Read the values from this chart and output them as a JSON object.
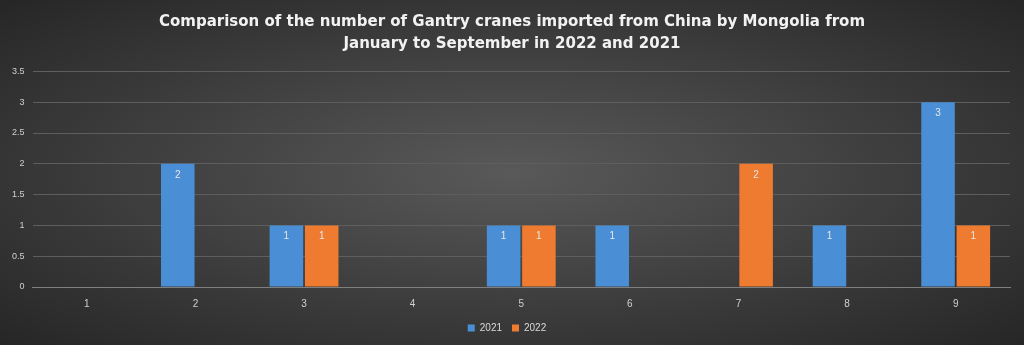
{
  "chart_data": {
    "type": "bar",
    "title": "Comparison of the number of Gantry cranes imported from China by Mongolia from January to September in 2022 and 2021",
    "categories": [
      "1",
      "2",
      "3",
      "4",
      "5",
      "6",
      "7",
      "8",
      "9"
    ],
    "series": [
      {
        "name": "2021",
        "color": "#4a8fd6",
        "values": [
          0,
          2,
          1,
          0,
          1,
          1,
          0,
          1,
          3
        ],
        "value_labels": [
          null,
          "2",
          "1",
          null,
          "1",
          "1",
          null,
          "1",
          "3"
        ]
      },
      {
        "name": "2022",
        "color": "#ee7b30",
        "values": [
          0,
          0,
          1,
          0,
          1,
          0,
          2,
          0,
          1
        ],
        "value_labels": [
          null,
          null,
          "1",
          null,
          "1",
          null,
          "2",
          null,
          "1"
        ]
      }
    ],
    "ylim": [
      0,
      3.5
    ],
    "yticks": [
      0,
      0.5,
      1,
      1.5,
      2,
      2.5,
      3,
      3.5
    ],
    "grid": "y",
    "legend": "bottom"
  }
}
